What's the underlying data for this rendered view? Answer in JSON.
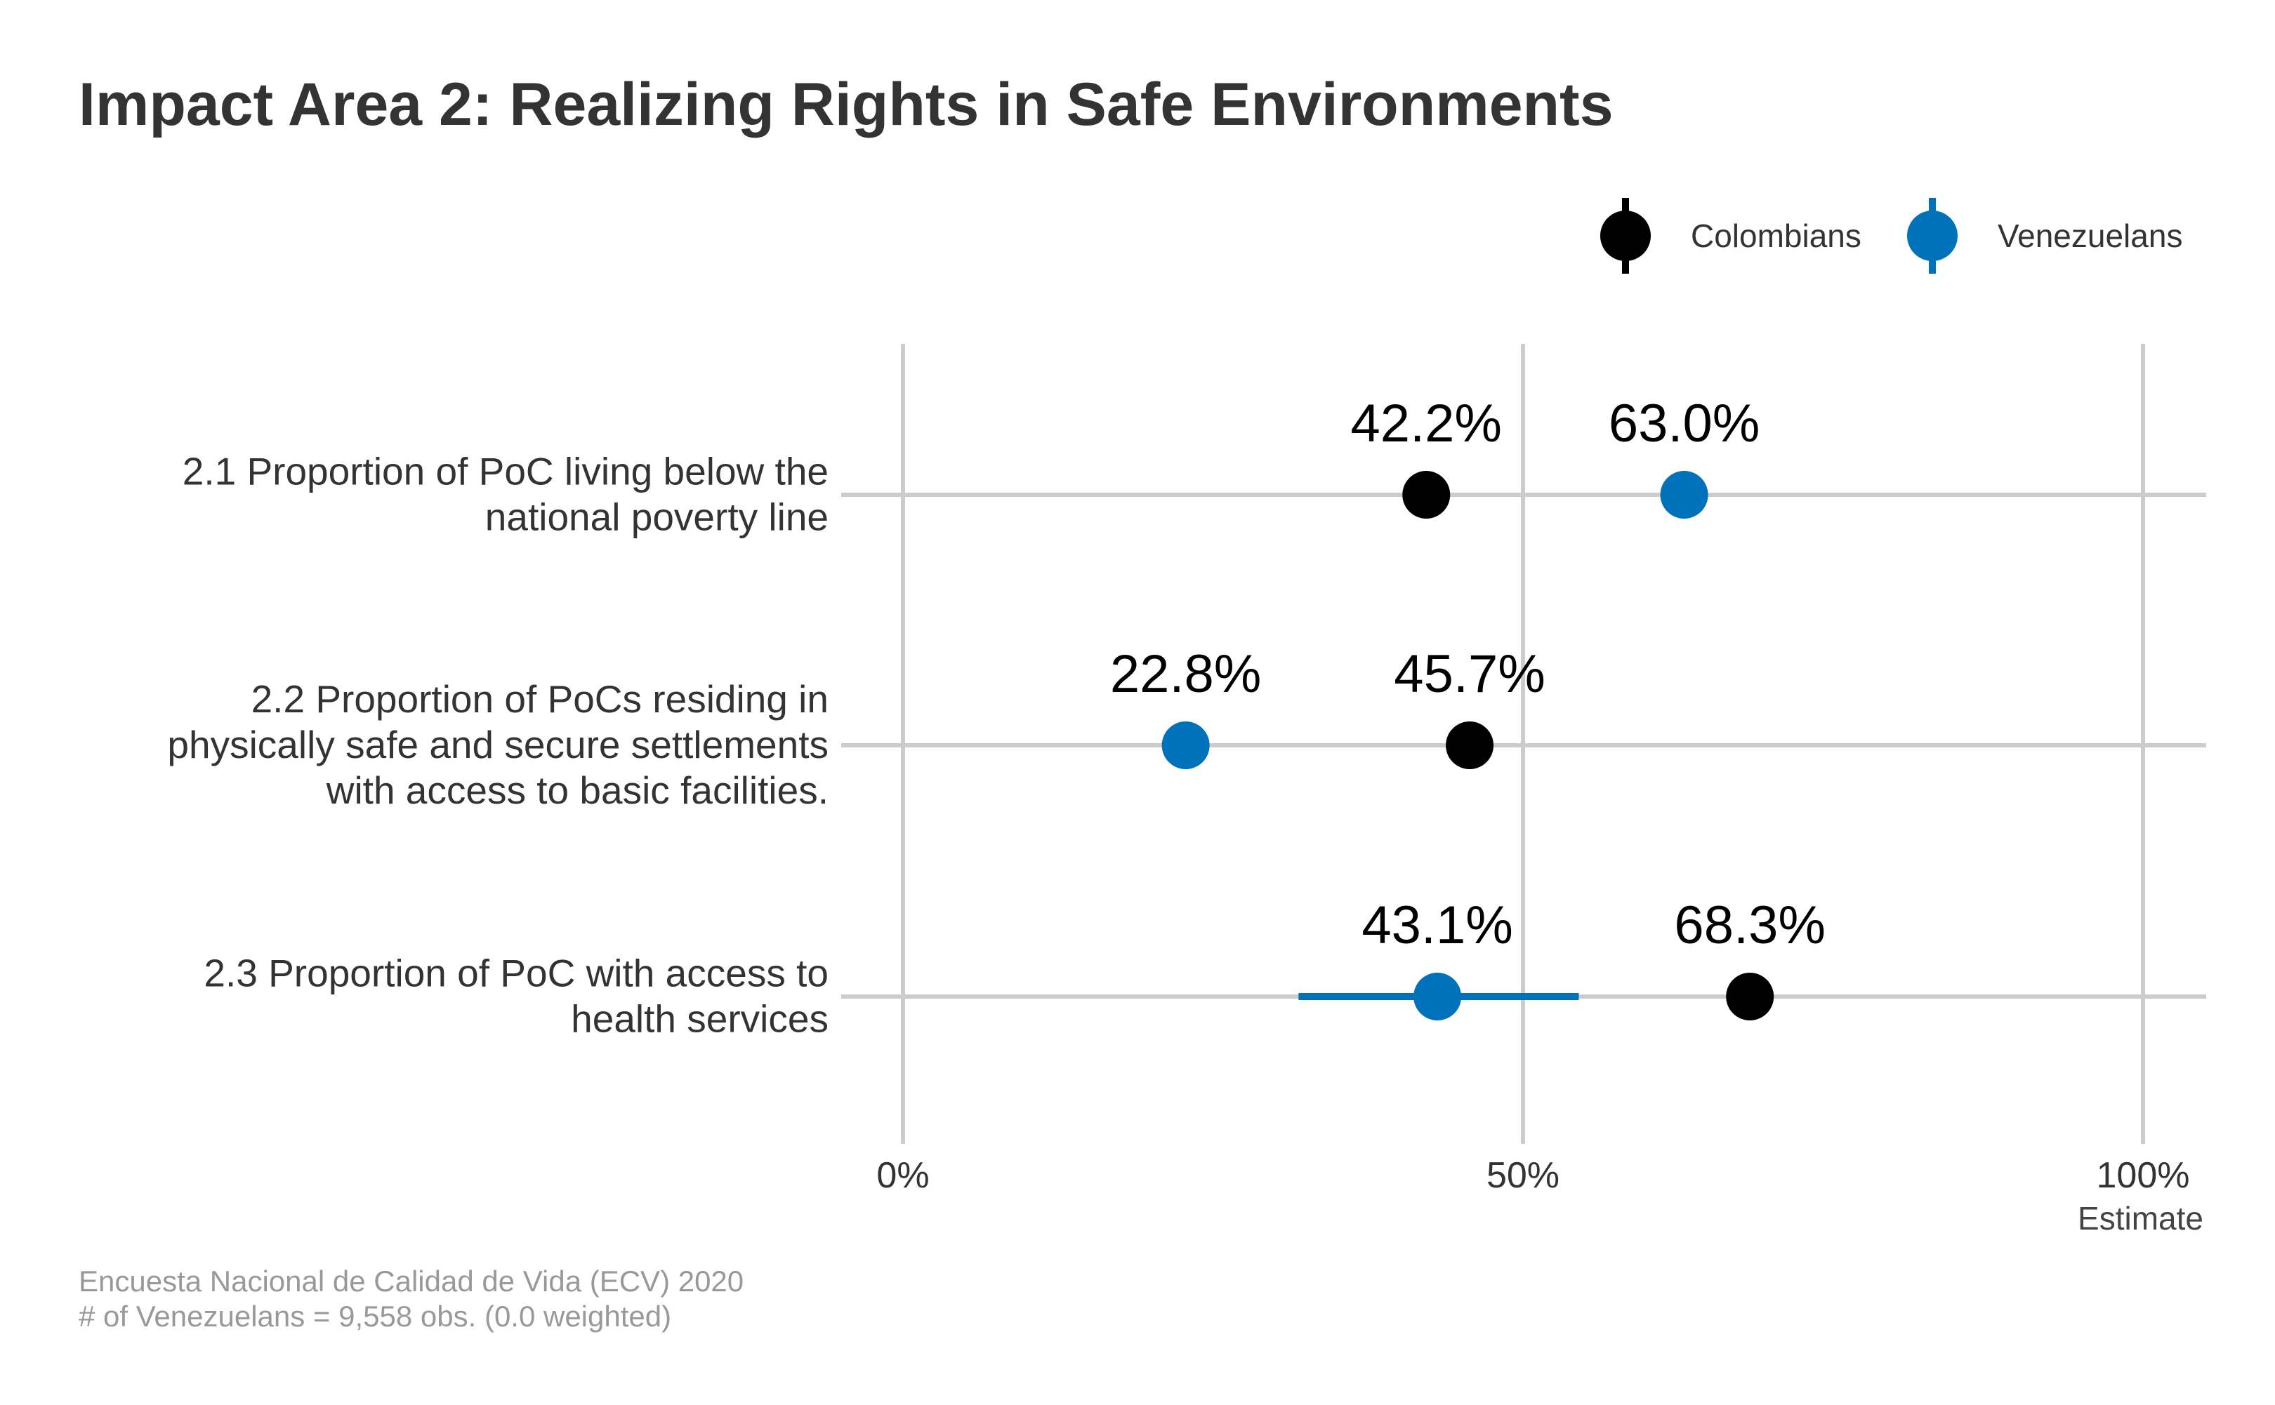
{
  "title": "Impact Area 2: Realizing Rights in Safe Environments",
  "legend": {
    "position": "top-right",
    "items": [
      {
        "label": "Colombians",
        "color": "#000000"
      },
      {
        "label": "Venezuelans",
        "color": "#0072BC"
      }
    ]
  },
  "caption": {
    "line1": "Encuesta Nacional de Calidad de Vida (ECV) 2020",
    "line2": "# of Venezuelans = 9,558 obs. (0.0 weighted)"
  },
  "chart_data": {
    "type": "scatter",
    "orientation": "horizontal",
    "xlabel": "Estimate",
    "xlim": [
      0,
      100
    ],
    "x_ticks": [
      {
        "value": 0,
        "label": "0%"
      },
      {
        "value": 50,
        "label": "50%"
      },
      {
        "value": 100,
        "label": "100%"
      }
    ],
    "grid": true,
    "categories": [
      {
        "lines": [
          "2.1 Proportion of PoC living below the",
          "national poverty line"
        ]
      },
      {
        "lines": [
          "2.2 Proportion of PoCs residing in",
          "physically safe and secure settlements",
          "with access to basic facilities."
        ]
      },
      {
        "lines": [
          "2.3 Proportion of PoC with access to",
          "health services"
        ]
      }
    ],
    "series": [
      {
        "name": "Colombians",
        "color": "#000000",
        "values": [
          42.2,
          45.7,
          68.3
        ],
        "labels": [
          "42.2%",
          "45.7%",
          "68.3%"
        ],
        "ci": [
          null,
          null,
          null
        ]
      },
      {
        "name": "Venezuelans",
        "color": "#0072BC",
        "values": [
          63.0,
          22.8,
          43.1
        ],
        "labels": [
          "63.0%",
          "22.8%",
          "43.1%"
        ],
        "ci": [
          null,
          null,
          [
            31.9,
            54.5
          ]
        ]
      }
    ]
  }
}
